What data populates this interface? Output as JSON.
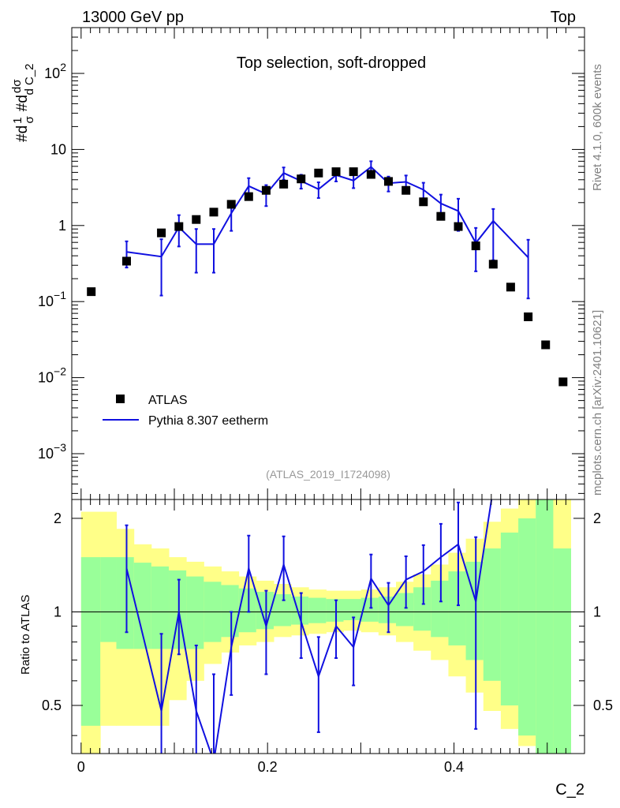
{
  "header": {
    "left": "13000 GeV pp",
    "right": "Top"
  },
  "side_labels": {
    "rivet": "Rivet 4.1.0,  600k events",
    "mcplots": "mcplots.cern.ch [arXiv:2401.10621]"
  },
  "colors": {
    "data": "#000000",
    "mc": "#1010e0",
    "band_inner": "#99ff99",
    "band_outer": "#ffff88"
  },
  "chart_data": [
    {
      "type": "scatter",
      "title": "Top selection, soft-dropped",
      "ylabel": "#dσ 1 #d dσ / d C_2",
      "yscale": "log",
      "ylim": [
        0.00025,
        400
      ],
      "xlim": [
        -0.01,
        0.54
      ],
      "y_ticks": [
        {
          "value": 0.001,
          "base": "10",
          "exp": "−3"
        },
        {
          "value": 0.01,
          "base": "10",
          "exp": "−2"
        },
        {
          "value": 0.1,
          "base": "10",
          "exp": "−1"
        },
        {
          "value": 1,
          "base": "1",
          "exp": ""
        },
        {
          "value": 10,
          "base": "10",
          "exp": ""
        },
        {
          "value": 100,
          "base": "10",
          "exp": "2"
        }
      ],
      "annotation": "(ATLAS_2019_I1724098)",
      "legend": {
        "position": "lower-left",
        "entries": [
          "ATLAS",
          "Pythia 8.307 eetherm"
        ]
      },
      "series": [
        {
          "name": "ATLAS",
          "style": "markers",
          "x": [
            0.0109,
            0.0488,
            0.0861,
            0.1049,
            0.1235,
            0.1423,
            0.1611,
            0.1798,
            0.1985,
            0.2173,
            0.236,
            0.2547,
            0.2735,
            0.2922,
            0.311,
            0.3297,
            0.3485,
            0.3672,
            0.3859,
            0.4046,
            0.4234,
            0.4421,
            0.4608,
            0.4796,
            0.4983,
            0.517
          ],
          "y": [
            0.135,
            0.34,
            0.8,
            0.97,
            1.2,
            1.5,
            1.9,
            2.4,
            2.9,
            3.5,
            4.1,
            4.9,
            5.1,
            5.1,
            4.7,
            3.8,
            2.9,
            2.05,
            1.32,
            0.97,
            0.54,
            0.31,
            0.155,
            0.063,
            0.027,
            0.0088
          ]
        },
        {
          "name": "Pythia 8.307 eetherm",
          "style": "line",
          "x": [
            0.0488,
            0.0861,
            0.1049,
            0.1235,
            0.1423,
            0.1611,
            0.1798,
            0.1985,
            0.2173,
            0.236,
            0.2547,
            0.2735,
            0.2922,
            0.311,
            0.3297,
            0.3485,
            0.3672,
            0.3859,
            0.4046,
            0.4234,
            0.4421,
            0.4796
          ],
          "y": [
            0.45,
            0.39,
            0.95,
            0.57,
            0.57,
            1.45,
            3.3,
            2.6,
            4.9,
            3.85,
            3.0,
            4.6,
            3.9,
            5.9,
            3.6,
            3.75,
            2.95,
            1.95,
            1.55,
            0.59,
            1.15,
            0.38
          ],
          "err_low": [
            0.17,
            0.27,
            0.42,
            0.33,
            0.33,
            0.6,
            0.9,
            0.8,
            0.9,
            0.8,
            0.7,
            0.8,
            0.8,
            1.1,
            0.8,
            0.8,
            0.7,
            0.6,
            0.7,
            0.34,
            0.8,
            0.27
          ],
          "err_high": [
            0.17,
            0.27,
            0.42,
            0.33,
            0.33,
            0.6,
            0.9,
            0.8,
            0.9,
            0.8,
            0.7,
            0.8,
            0.8,
            1.1,
            0.8,
            0.8,
            0.7,
            0.6,
            0.7,
            0.34,
            0.5,
            0.27
          ]
        }
      ]
    },
    {
      "type": "line",
      "ylabel": "Ratio to ATLAS",
      "xlabel": "C_2",
      "xlim": [
        -0.01,
        0.54
      ],
      "ylim": [
        0.35,
        2.3
      ],
      "x_ticks": [
        "0",
        "0.2",
        "0.4"
      ],
      "y_ticks": [
        "0.5",
        "1",
        "2"
      ],
      "reference_line": 1,
      "band_edges": [
        0,
        0.0206,
        0.0378,
        0.0566,
        0.0753,
        0.0941,
        0.1128,
        0.1316,
        0.1503,
        0.1691,
        0.1878,
        0.2066,
        0.2253,
        0.244,
        0.2628,
        0.2815,
        0.3003,
        0.319,
        0.3378,
        0.3565,
        0.3752,
        0.394,
        0.4127,
        0.4315,
        0.4502,
        0.469,
        0.4877,
        0.5065,
        0.5252
      ],
      "band_inner": {
        "low": [
          0.43,
          0.8,
          0.76,
          0.76,
          0.76,
          0.76,
          0.76,
          0.8,
          0.83,
          0.86,
          0.88,
          0.9,
          0.91,
          0.92,
          0.93,
          0.94,
          0.93,
          0.92,
          0.9,
          0.87,
          0.83,
          0.78,
          0.7,
          0.6,
          0.5,
          0.4,
          0.35,
          0.35
        ],
        "high": [
          1.5,
          1.5,
          1.5,
          1.44,
          1.4,
          1.36,
          1.3,
          1.25,
          1.22,
          1.19,
          1.16,
          1.14,
          1.12,
          1.11,
          1.1,
          1.1,
          1.11,
          1.12,
          1.15,
          1.2,
          1.26,
          1.35,
          1.45,
          1.6,
          1.8,
          2.0,
          2.3,
          1.6
        ]
      },
      "band_outer": {
        "low": [
          0.35,
          0.43,
          0.43,
          0.43,
          0.43,
          0.52,
          0.6,
          0.68,
          0.74,
          0.78,
          0.8,
          0.83,
          0.84,
          0.85,
          0.86,
          0.87,
          0.86,
          0.84,
          0.8,
          0.75,
          0.7,
          0.62,
          0.55,
          0.48,
          0.42,
          0.37,
          0.35,
          0.35
        ],
        "high": [
          2.1,
          2.1,
          1.85,
          1.65,
          1.6,
          1.5,
          1.45,
          1.4,
          1.35,
          1.3,
          1.26,
          1.23,
          1.2,
          1.18,
          1.17,
          1.17,
          1.18,
          1.2,
          1.25,
          1.32,
          1.42,
          1.55,
          1.72,
          1.95,
          2.15,
          2.3,
          2.3,
          2.3
        ]
      },
      "series": [
        {
          "name": "Pythia 8.307 eetherm / ATLAS",
          "x": [
            0.0488,
            0.0861,
            0.1049,
            0.1235,
            0.1423,
            0.1611,
            0.1798,
            0.1985,
            0.2173,
            0.236,
            0.2547,
            0.2735,
            0.2922,
            0.311,
            0.3297,
            0.3485,
            0.3672,
            0.3859,
            0.4046,
            0.4234,
            0.4421
          ],
          "y": [
            1.38,
            0.48,
            1.0,
            0.48,
            0.33,
            0.77,
            1.38,
            0.9,
            1.42,
            0.93,
            0.62,
            0.9,
            0.77,
            1.28,
            1.05,
            1.27,
            1.35,
            1.5,
            1.65,
            1.08,
            2.5
          ],
          "err": [
            0.52,
            0.37,
            0.27,
            0.3,
            0.3,
            0.23,
            0.38,
            0.27,
            0.33,
            0.22,
            0.21,
            0.19,
            0.19,
            0.25,
            0.19,
            0.24,
            0.29,
            0.42,
            0.6,
            0.66,
            0
          ]
        }
      ]
    }
  ]
}
